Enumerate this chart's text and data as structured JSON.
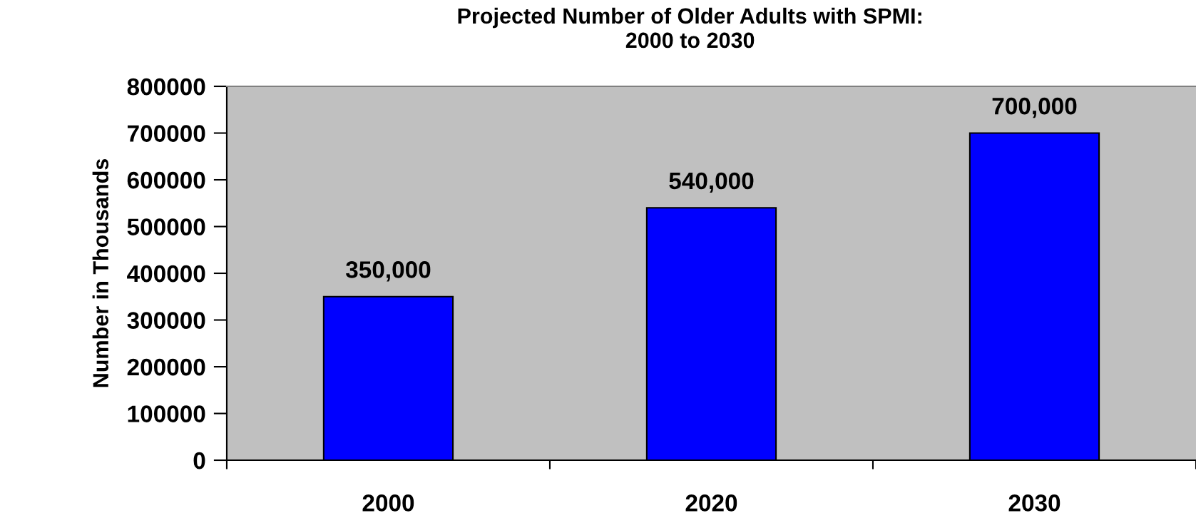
{
  "chart_data": {
    "type": "bar",
    "title": "Projected Number of Older Adults with SPMI:\n2000 to 2030",
    "ylabel": "Number in Thousands",
    "categories": [
      "2000",
      "2020",
      "2030"
    ],
    "values": [
      350000,
      540000,
      700000
    ],
    "value_labels": [
      "350,000",
      "540,000",
      "700,000"
    ],
    "color": "#0000ff",
    "ylim": [
      0,
      800000
    ],
    "yticks": [
      0,
      100000,
      200000,
      300000,
      400000,
      500000,
      600000,
      700000,
      800000
    ]
  }
}
